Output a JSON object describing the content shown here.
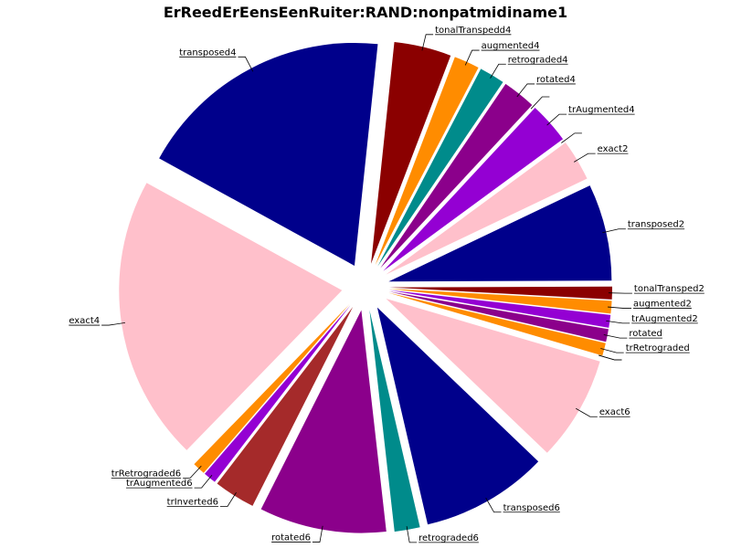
{
  "chart_data": {
    "type": "pie",
    "title": "ErReedErEensEenRuiter:RAND:nonpatmidiname1",
    "start_angle_deg": 84,
    "labeled_slices": [
      {
        "label": "tonalTranspedd4",
        "value": 3.6,
        "color": "#8b0000"
      },
      {
        "label": "augmented4",
        "value": 1.6,
        "color": "#ff8c00"
      },
      {
        "label": "retrograded4",
        "value": 1.6,
        "color": "#008b8b"
      },
      {
        "label": "rotated4",
        "value": 2.1,
        "color": "#8b008b"
      },
      {
        "label": "",
        "value": 0.0,
        "color": "#ff8c00"
      },
      {
        "label": "trAugmented4",
        "value": 2.6,
        "color": "#9400d3"
      },
      {
        "label": "",
        "value": 0.0,
        "color": "#a52a2a"
      },
      {
        "label": "exact2",
        "value": 2.6,
        "color": "#ffc0cb"
      },
      {
        "label": "transposed2",
        "value": 6.1,
        "color": "#00008b"
      },
      {
        "label": "tonalTransped2",
        "value": 0.8,
        "color": "#8b0000"
      },
      {
        "label": "augmented2",
        "value": 0.8,
        "color": "#ff8c00"
      },
      {
        "label": "trAugmented2",
        "value": 0.8,
        "color": "#9400d3"
      },
      {
        "label": "rotated",
        "value": 0.8,
        "color": "#8b008b"
      },
      {
        "label": "trRetrograded",
        "value": 0.8,
        "color": "#ff8c00"
      },
      {
        "label": "",
        "value": 0.0,
        "color": "#9400d3"
      },
      {
        "label": "",
        "value": 0.0,
        "color": "#a52a2a"
      },
      {
        "label": "exact6",
        "value": 6.6,
        "color": "#ffc0cb"
      },
      {
        "label": "transposed6",
        "value": 8.0,
        "color": "#00008b"
      },
      {
        "label": "retrograded6",
        "value": 1.6,
        "color": "#008b8b"
      },
      {
        "label": "rotated6",
        "value": 8.0,
        "color": "#8b008b"
      },
      {
        "label": "trInverted6",
        "value": 2.6,
        "color": "#a52a2a"
      },
      {
        "label": "trAugmented6",
        "value": 0.8,
        "color": "#9400d3"
      },
      {
        "label": "trRetrograded6",
        "value": 0.8,
        "color": "#ff8c00"
      },
      {
        "label": "exact4",
        "value": 18.0,
        "color": "#ffc0cb"
      },
      {
        "label": "transposed4",
        "value": 16.2,
        "color": "#00008b"
      }
    ]
  }
}
